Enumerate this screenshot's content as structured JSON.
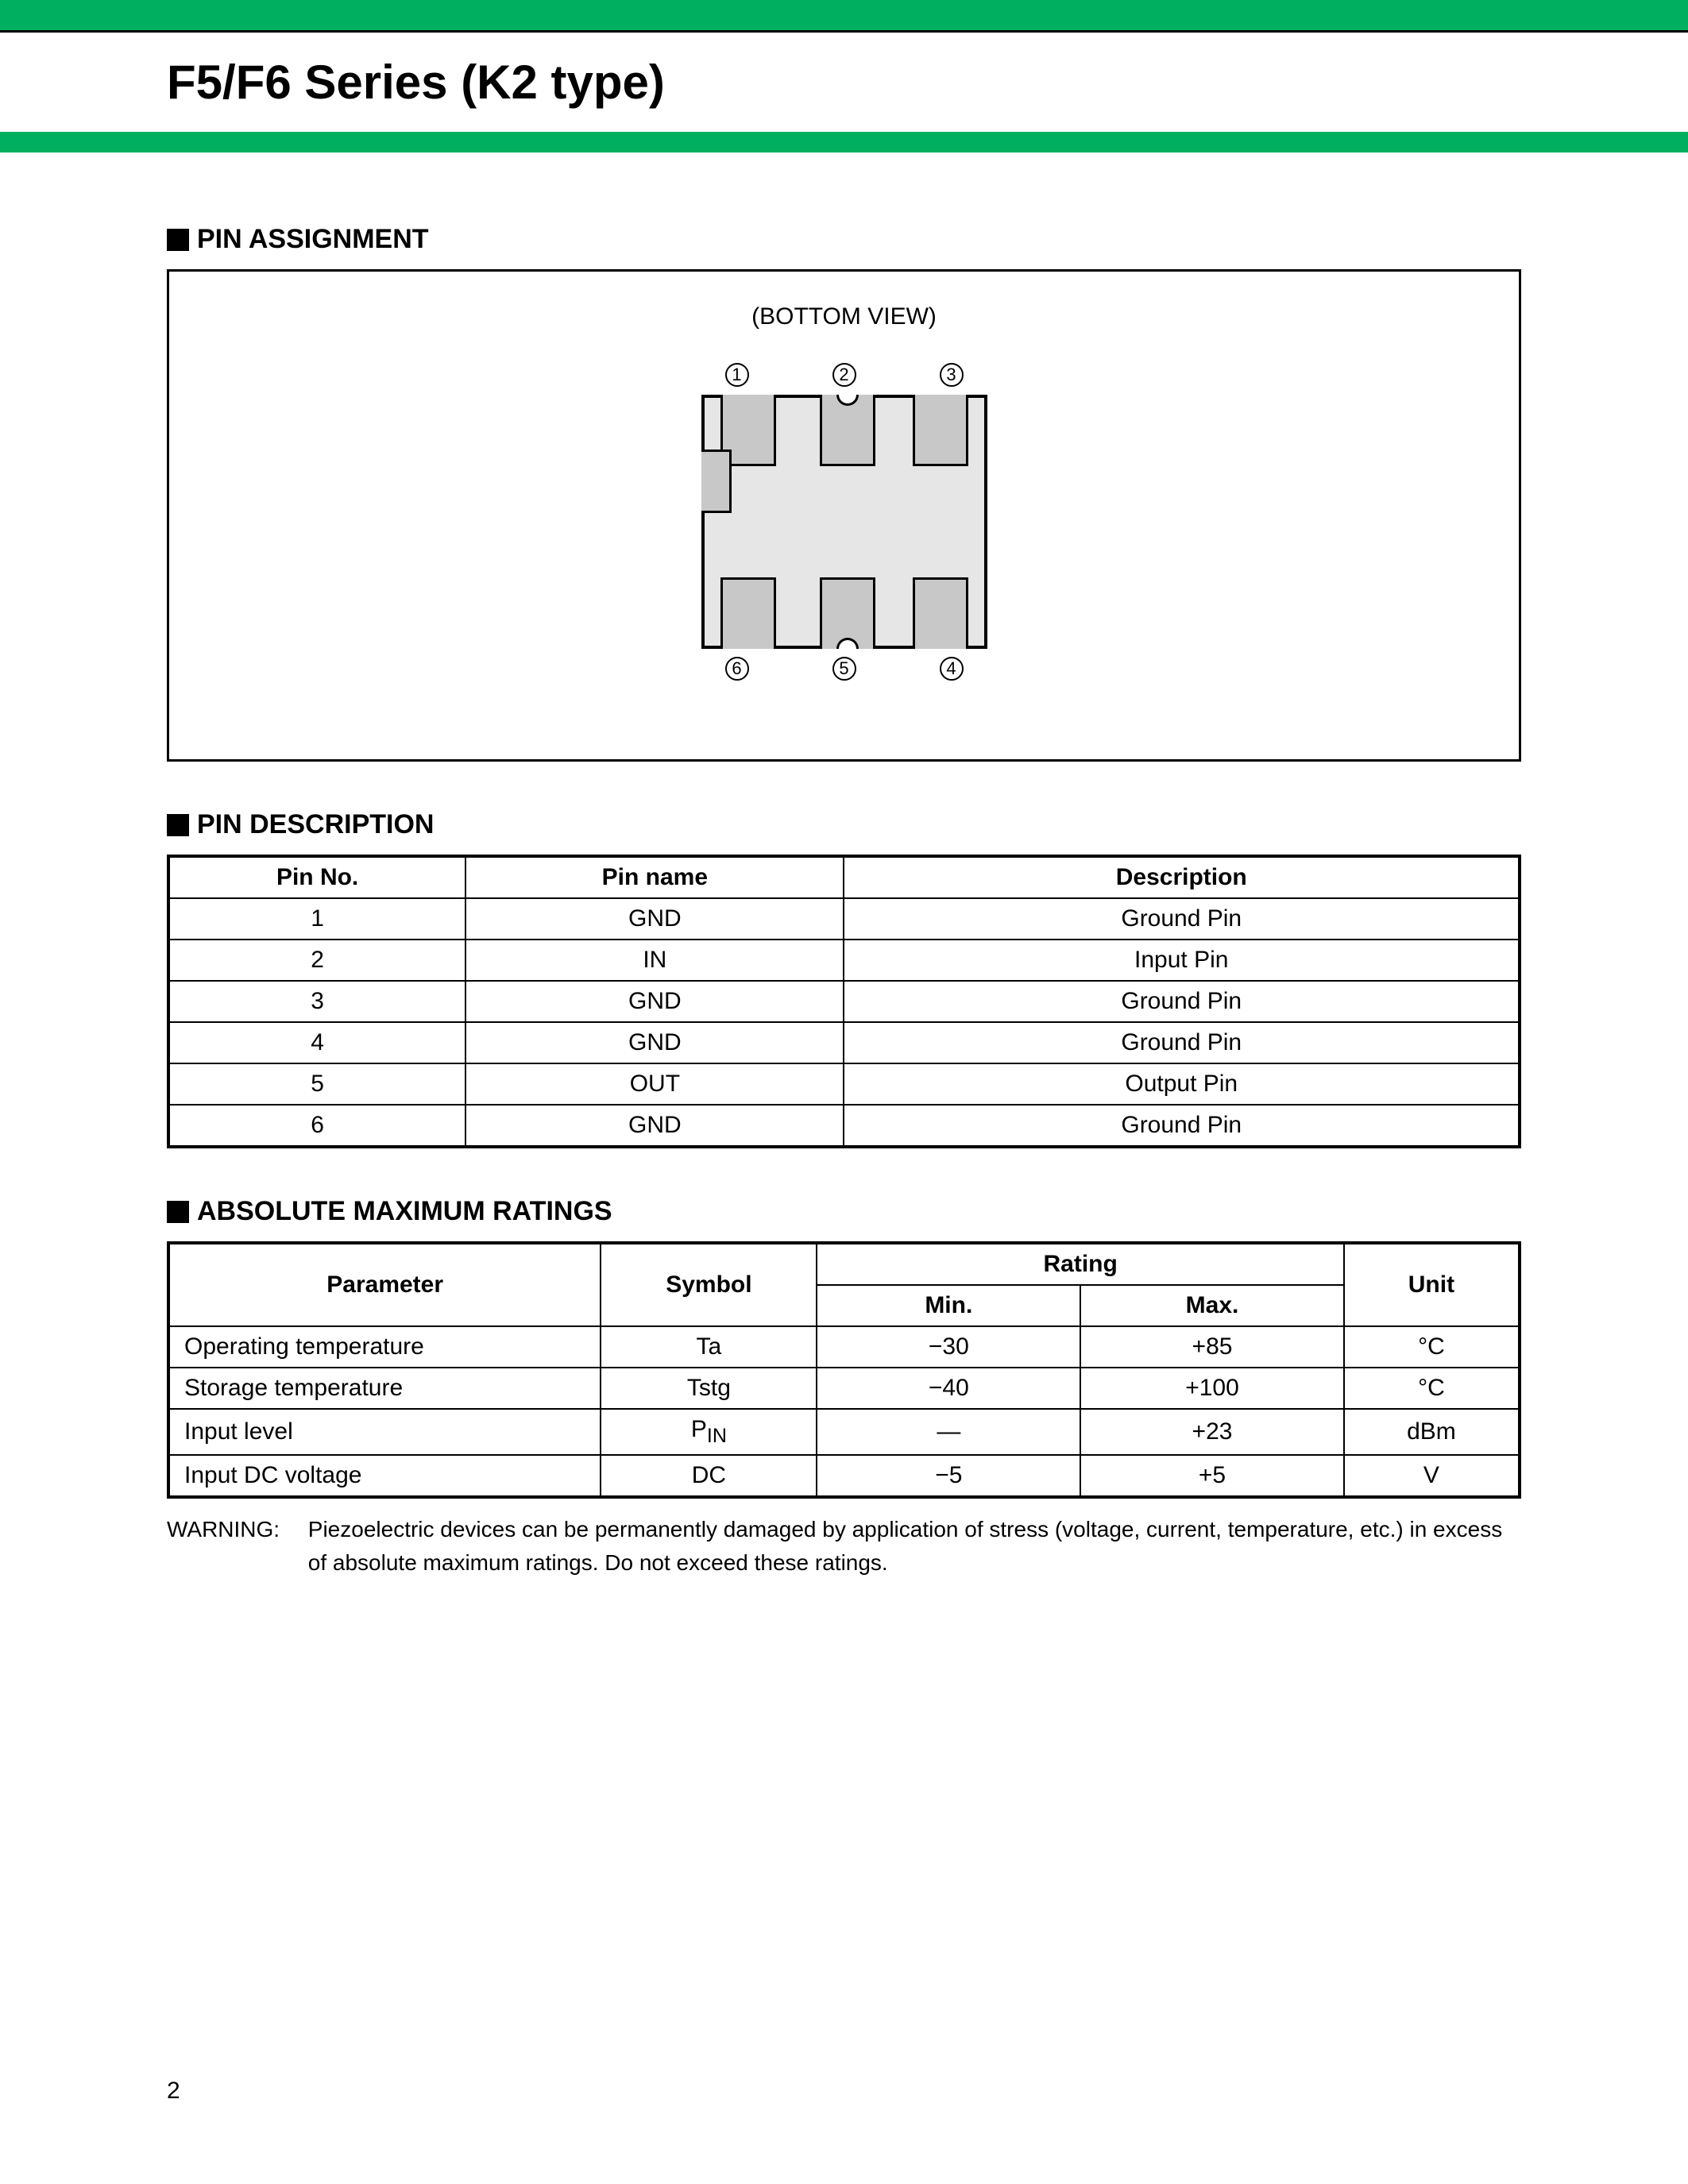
{
  "header": {
    "title": "F5/F6 Series (K2 type)",
    "accent_color": "#00b060"
  },
  "pin_assignment": {
    "heading": "PIN ASSIGNMENT",
    "view_label": "(BOTTOM VIEW)",
    "top_pins": [
      "1",
      "2",
      "3"
    ],
    "bottom_pins": [
      "6",
      "5",
      "4"
    ]
  },
  "pin_description": {
    "heading": "PIN DESCRIPTION",
    "columns": [
      "Pin No.",
      "Pin name",
      "Description"
    ],
    "rows": [
      [
        "1",
        "GND",
        "Ground Pin"
      ],
      [
        "2",
        "IN",
        "Input Pin"
      ],
      [
        "3",
        "GND",
        "Ground Pin"
      ],
      [
        "4",
        "GND",
        "Ground Pin"
      ],
      [
        "5",
        "OUT",
        "Output Pin"
      ],
      [
        "6",
        "GND",
        "Ground Pin"
      ]
    ]
  },
  "absolute_maximum_ratings": {
    "heading": "ABSOLUTE MAXIMUM RATINGS",
    "header_parameter": "Parameter",
    "header_symbol": "Symbol",
    "header_rating": "Rating",
    "header_min": "Min.",
    "header_max": "Max.",
    "header_unit": "Unit",
    "rows": [
      {
        "parameter": "Operating temperature",
        "symbol": "Ta",
        "min": "−30",
        "max": "+85",
        "unit": "°C"
      },
      {
        "parameter": "Storage temperature",
        "symbol": "Tstg",
        "min": "−40",
        "max": "+100",
        "unit": "°C"
      },
      {
        "parameter": "Input level",
        "symbol_html": "P<sub>IN</sub>",
        "symbol": "PIN",
        "min": "—",
        "max": "+23",
        "unit": "dBm"
      },
      {
        "parameter": "Input DC voltage",
        "symbol": "DC",
        "min": "−5",
        "max": "+5",
        "unit": "V"
      }
    ]
  },
  "warning": {
    "label": "WARNING:",
    "text": "Piezoelectric devices can be permanently damaged by application of stress (voltage, current, temperature, etc.) in excess of absolute maximum ratings. Do not exceed these ratings."
  },
  "page_number": "2"
}
